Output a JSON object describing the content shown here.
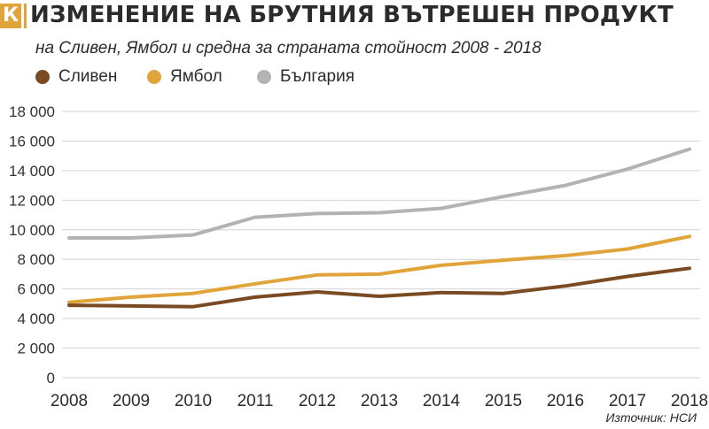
{
  "header": {
    "logo_letter": "К",
    "title": "ИЗМЕНЕНИЕ НА БРУТНИЯ ВЪТРЕШЕН ПРОДУКТ",
    "subtitle": "на Сливен, Ямбол и средна за страната стойност 2008 - 2018"
  },
  "legend": [
    {
      "label": "Сливен",
      "color": "#7a4a22"
    },
    {
      "label": "Ямбол",
      "color": "#e0a43a"
    },
    {
      "label": "България",
      "color": "#b3b3b3"
    }
  ],
  "source": "Източник: НСИ",
  "chart_data": {
    "type": "line",
    "title": "ИЗМЕНЕНИЕ НА БРУТНИЯ ВЪТРЕШЕН ПРОДУКТ",
    "subtitle": "на Сливен, Ямбол и средна за страната стойност 2008 - 2018",
    "x": [
      "2008",
      "2009",
      "2010",
      "2011",
      "2012",
      "2013",
      "2014",
      "2015",
      "2016",
      "2017",
      "2018"
    ],
    "yticks": [
      "0",
      "2 000",
      "4 000",
      "6 000",
      "8 000",
      "10 000",
      "12 000",
      "14 000",
      "16 000",
      "18 000"
    ],
    "ylim": [
      0,
      18000
    ],
    "grid": true,
    "legend_position": "top-left",
    "series": [
      {
        "name": "Сливен",
        "color": "#7a4a22",
        "values": [
          4900,
          4850,
          4800,
          5450,
          5800,
          5500,
          5750,
          5700,
          6200,
          6850,
          7400
        ]
      },
      {
        "name": "Ямбол",
        "color": "#e0a43a",
        "values": [
          5100,
          5450,
          5700,
          6350,
          6950,
          7000,
          7600,
          7950,
          8250,
          8700,
          9550
        ]
      },
      {
        "name": "България",
        "color": "#b3b3b3",
        "values": [
          9450,
          9450,
          9650,
          10850,
          11100,
          11150,
          11450,
          12250,
          13000,
          14100,
          15450
        ]
      }
    ]
  }
}
